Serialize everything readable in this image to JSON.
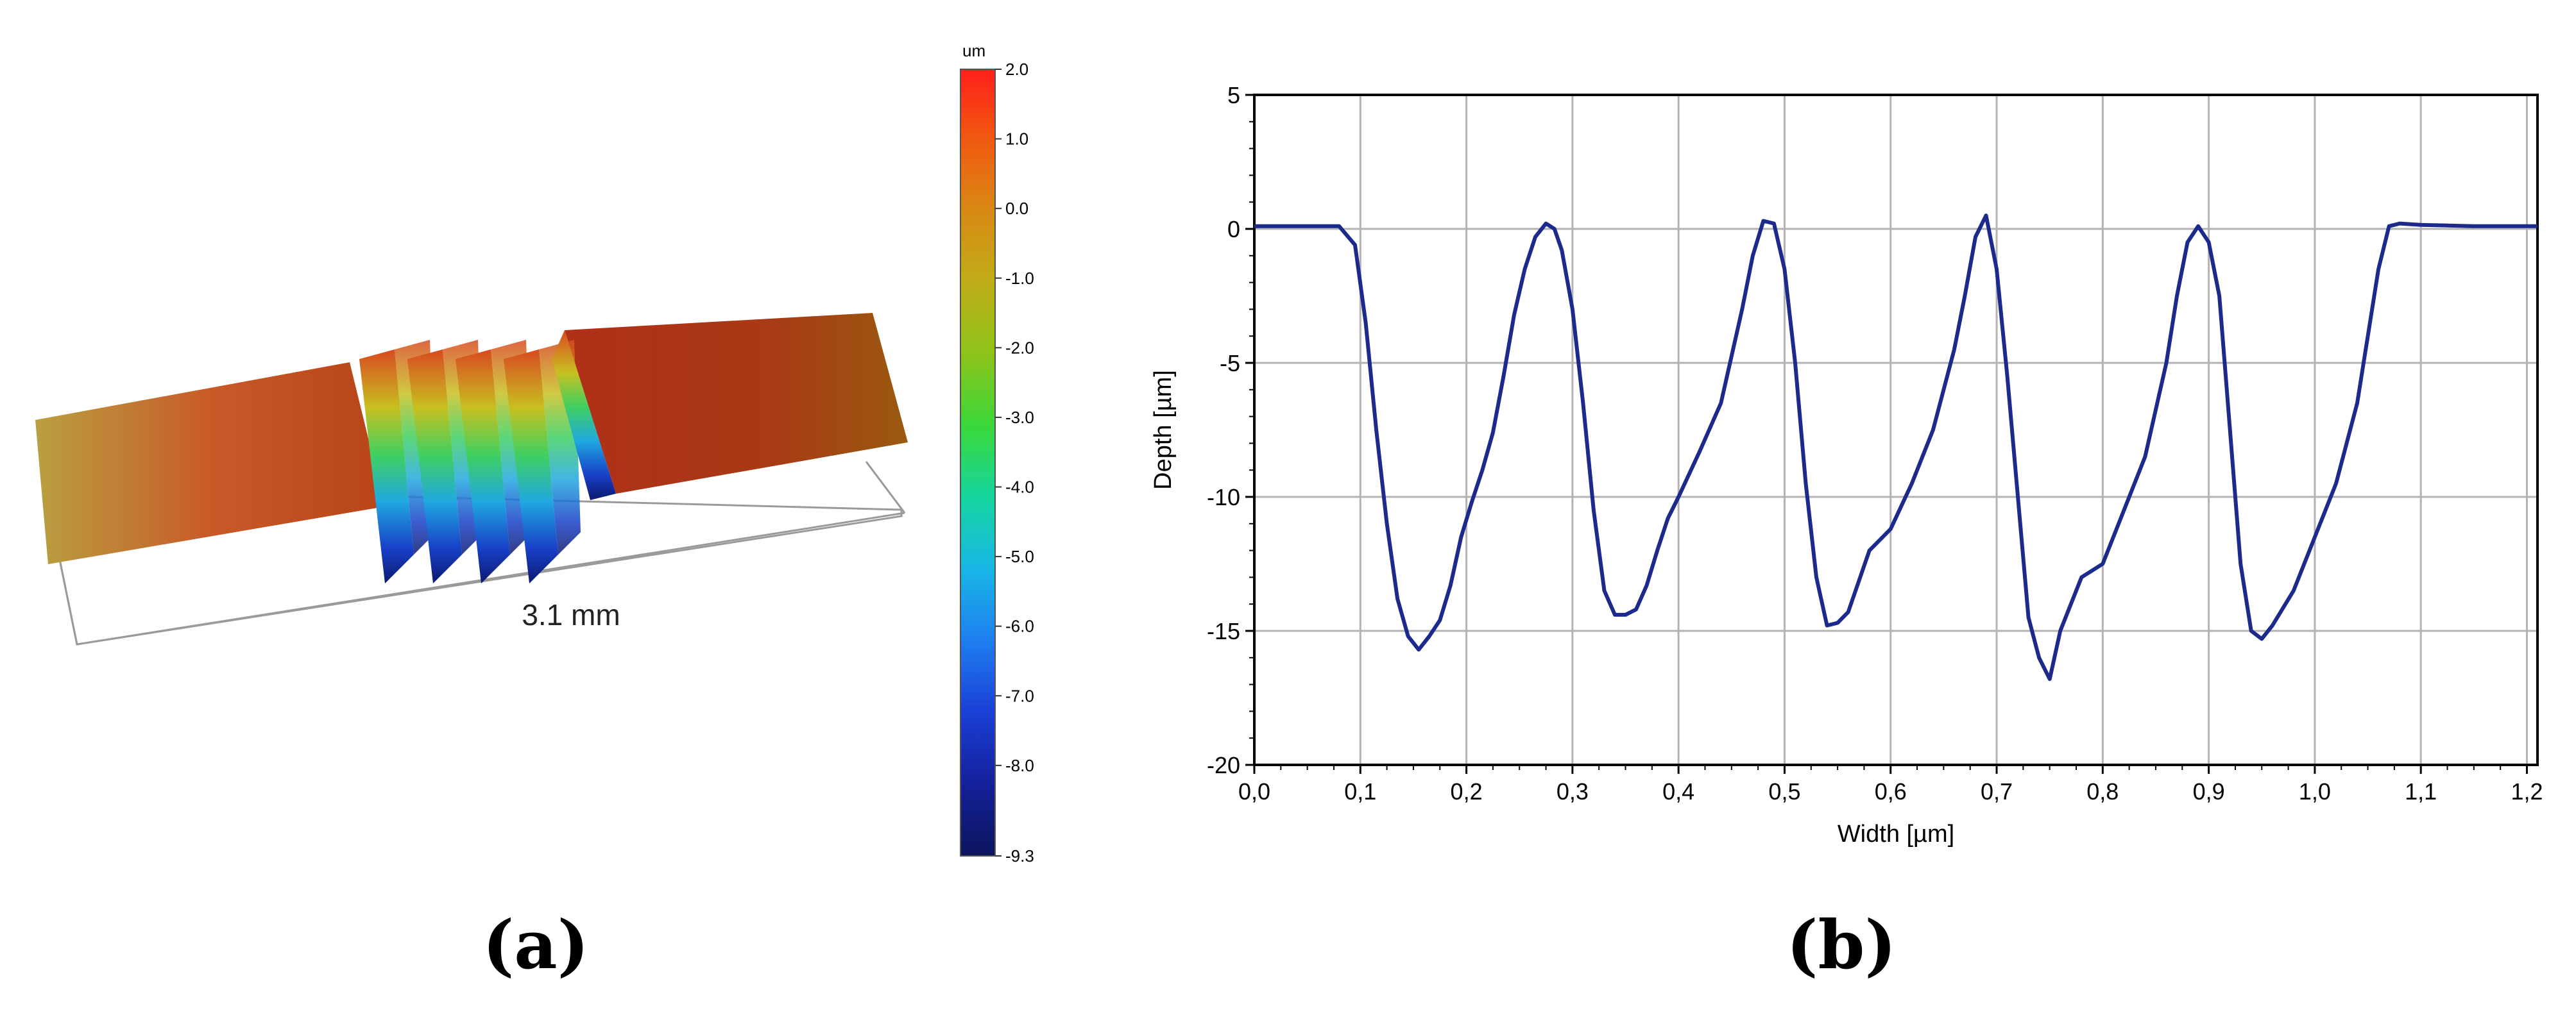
{
  "panel_a": {
    "label": "(a)",
    "dimension_label": "3.1 mm",
    "colorbar": {
      "unit": "um",
      "ticks": [
        "2.0",
        "1.0",
        "0.0",
        "-1.0",
        "-2.0",
        "-3.0",
        "-4.0",
        "-5.0",
        "-6.0",
        "-7.0",
        "-8.0",
        "-9.3"
      ],
      "colors": [
        "#ff1f1a",
        "#f05a10",
        "#d88a14",
        "#bfae18",
        "#8cc41a",
        "#39d83a",
        "#16d6a0",
        "#18b6e6",
        "#1e7ef0",
        "#1a3fd6",
        "#14209a",
        "#0c155c"
      ]
    }
  },
  "panel_b": {
    "label": "(b)",
    "line_color": "#1c2a8c",
    "grid_color": "#b3b3b3"
  },
  "chart_data": [
    {
      "type": "line",
      "title": "",
      "xlabel": "Width [µm]",
      "ylabel": "Depth [µm]",
      "xlim": [
        0.0,
        1.21
      ],
      "ylim": [
        -20,
        5
      ],
      "xticks": [
        "0,0",
        "0,1",
        "0,2",
        "0,3",
        "0,4",
        "0,5",
        "0,6",
        "0,7",
        "0,8",
        "0,9",
        "1,0",
        "1,1",
        "1,2"
      ],
      "yticks": [
        "5",
        "0",
        "-5",
        "-10",
        "-15",
        "-20"
      ],
      "grid": true,
      "series": [
        {
          "x": [
            0.0,
            0.02,
            0.05,
            0.08,
            0.095,
            0.105,
            0.115,
            0.125,
            0.135,
            0.145,
            0.155,
            0.165,
            0.175,
            0.185,
            0.195,
            0.205,
            0.215,
            0.225,
            0.235,
            0.245,
            0.255,
            0.265,
            0.275,
            0.283,
            0.29,
            0.3,
            0.31,
            0.32,
            0.33,
            0.34,
            0.35,
            0.36,
            0.37,
            0.38,
            0.39,
            0.4,
            0.42,
            0.44,
            0.46,
            0.47,
            0.48,
            0.49,
            0.5,
            0.51,
            0.52,
            0.53,
            0.54,
            0.55,
            0.56,
            0.58,
            0.6,
            0.62,
            0.64,
            0.66,
            0.67,
            0.68,
            0.69,
            0.7,
            0.71,
            0.72,
            0.73,
            0.74,
            0.75,
            0.76,
            0.78,
            0.8,
            0.82,
            0.84,
            0.86,
            0.87,
            0.88,
            0.89,
            0.9,
            0.91,
            0.92,
            0.93,
            0.94,
            0.95,
            0.96,
            0.98,
            1.0,
            1.02,
            1.04,
            1.06,
            1.07,
            1.08,
            1.1,
            1.15,
            1.21
          ],
          "y": [
            0.1,
            0.1,
            0.1,
            0.1,
            -0.6,
            -3.5,
            -7.5,
            -11.0,
            -13.8,
            -15.2,
            -15.7,
            -15.2,
            -14.6,
            -13.3,
            -11.5,
            -10.2,
            -9.0,
            -7.6,
            -5.5,
            -3.2,
            -1.5,
            -0.3,
            0.2,
            0.0,
            -0.8,
            -3.0,
            -6.5,
            -10.5,
            -13.5,
            -14.4,
            -14.4,
            -14.2,
            -13.3,
            -12.0,
            -10.8,
            -10.0,
            -8.3,
            -6.5,
            -3.0,
            -1.0,
            0.3,
            0.2,
            -1.5,
            -5.0,
            -9.5,
            -13.0,
            -14.8,
            -14.7,
            -14.3,
            -12.0,
            -11.2,
            -9.5,
            -7.5,
            -4.5,
            -2.5,
            -0.3,
            0.5,
            -1.5,
            -5.5,
            -10.0,
            -14.5,
            -16.0,
            -16.8,
            -15.0,
            -13.0,
            -12.5,
            -10.5,
            -8.5,
            -5.0,
            -2.5,
            -0.5,
            0.1,
            -0.5,
            -2.5,
            -7.5,
            -12.5,
            -15.0,
            -15.3,
            -14.8,
            -13.5,
            -11.5,
            -9.5,
            -6.5,
            -1.5,
            0.1,
            0.2,
            0.15,
            0.1,
            0.1
          ]
        }
      ]
    }
  ]
}
